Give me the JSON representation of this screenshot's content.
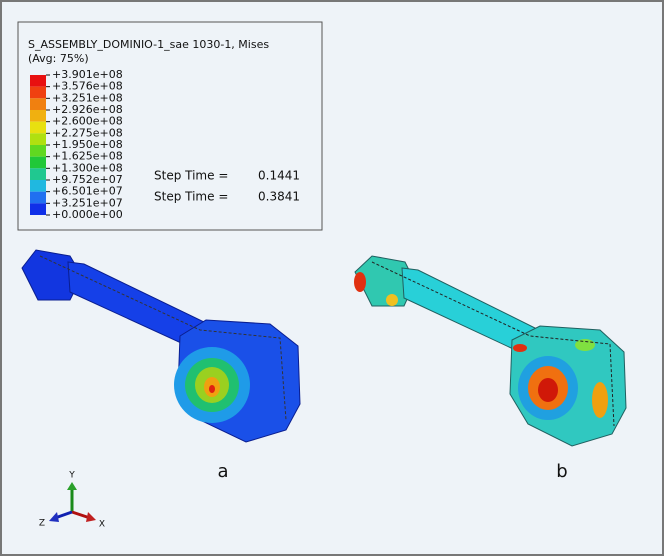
{
  "legend": {
    "title": "S_ASSEMBLY_DOMINIO-1_sae 1030-1, Mises",
    "subtitle": "(Avg: 75%)",
    "values": [
      "+3.901e+08",
      "+3.576e+08",
      "+3.251e+08",
      "+2.926e+08",
      "+2.600e+08",
      "+2.275e+08",
      "+1.950e+08",
      "+1.625e+08",
      "+1.300e+08",
      "+9.752e+07",
      "+6.501e+07",
      "+3.251e+07",
      "+0.000e+00"
    ]
  },
  "step_times": [
    {
      "label": "Step Time =",
      "value": "0.1441"
    },
    {
      "label": "Step Time =",
      "value": "0.3841"
    }
  ],
  "labels": {
    "a": "a",
    "b": "b"
  },
  "triad": {
    "y": "Y",
    "z": "Z",
    "x": "X"
  }
}
